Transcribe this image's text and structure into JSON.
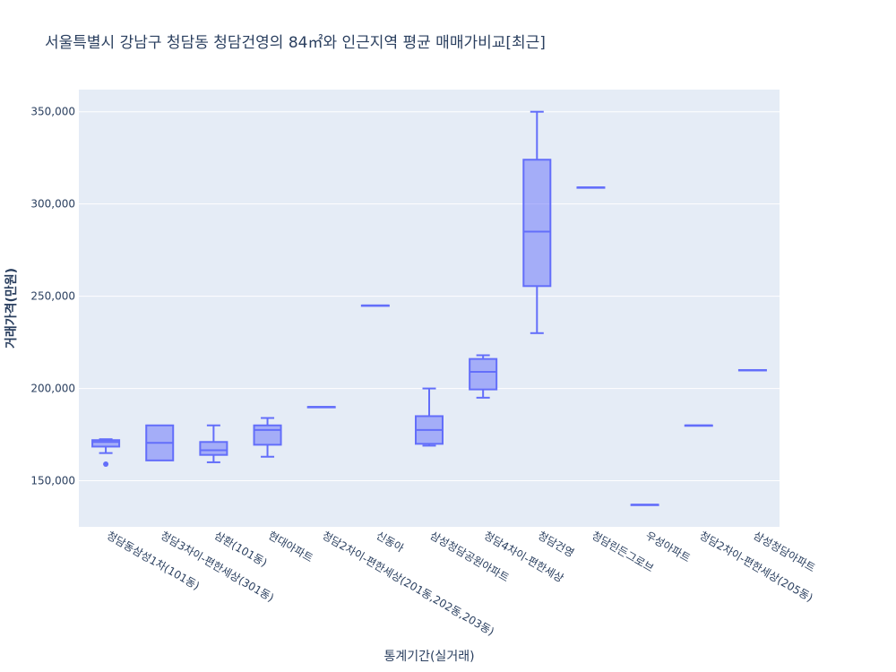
{
  "chart_data": {
    "type": "box",
    "title": "서울특별시 강남구 청담동 청담건영의 84㎡와 인근지역 평균 매매가비교[최근]",
    "xlabel": "통계기간(실거래)",
    "ylabel": "거래가격(만원)",
    "ylim": [
      125000,
      362000
    ],
    "y_ticks": [
      150000,
      200000,
      250000,
      300000,
      350000
    ],
    "y_tick_labels": [
      "150,000",
      "200,000",
      "250,000",
      "300,000",
      "350,000"
    ],
    "grid": true,
    "colors": {
      "plot_bg": "#e5ecf6",
      "box_line": "#636efa",
      "box_fill": "rgba(99,110,250,0.5)",
      "grid": "#ffffff"
    },
    "categories": [
      "청담동삼성1차(101동)",
      "청담3차이-편한세상(301동)",
      "삼환(101동)",
      "현대아파트",
      "청담2차이-편한세상(201동,202동,203동)",
      "신동아",
      "삼성청담공원아파트",
      "청담4차이-편한세상",
      "청담건영",
      "청담린든그로브",
      "우성아파트",
      "청담2차이-편한세상(205동)",
      "삼성청담아파트"
    ],
    "boxes": [
      {
        "min": 165000,
        "q1": 168500,
        "median": 171000,
        "q3": 172000,
        "max": 172500,
        "outliers": [
          159000
        ]
      },
      {
        "min": 161000,
        "q1": 161000,
        "median": 170500,
        "q3": 180000,
        "max": 180000,
        "outliers": []
      },
      {
        "min": 160000,
        "q1": 164000,
        "median": 166500,
        "q3": 171000,
        "max": 180000,
        "outliers": []
      },
      {
        "min": 163000,
        "q1": 169500,
        "median": 177500,
        "q3": 180000,
        "max": 184000,
        "outliers": []
      },
      {
        "min": 190000,
        "q1": 190000,
        "median": 190000,
        "q3": 190000,
        "max": 190000,
        "outliers": []
      },
      {
        "min": 245000,
        "q1": 245000,
        "median": 245000,
        "q3": 245000,
        "max": 245000,
        "outliers": []
      },
      {
        "min": 169000,
        "q1": 170000,
        "median": 177500,
        "q3": 185000,
        "max": 200000,
        "outliers": []
      },
      {
        "min": 195000,
        "q1": 199500,
        "median": 209000,
        "q3": 216000,
        "max": 218000,
        "outliers": []
      },
      {
        "min": 230000,
        "q1": 255500,
        "median": 285000,
        "q3": 324000,
        "max": 350000,
        "outliers": []
      },
      {
        "min": 309000,
        "q1": 309000,
        "median": 309000,
        "q3": 309000,
        "max": 309000,
        "outliers": []
      },
      {
        "min": 137000,
        "q1": 137000,
        "median": 137000,
        "q3": 137000,
        "max": 137000,
        "outliers": []
      },
      {
        "min": 180000,
        "q1": 180000,
        "median": 180000,
        "q3": 180000,
        "max": 180000,
        "outliers": []
      },
      {
        "min": 210000,
        "q1": 210000,
        "median": 210000,
        "q3": 210000,
        "max": 210000,
        "outliers": []
      }
    ]
  }
}
